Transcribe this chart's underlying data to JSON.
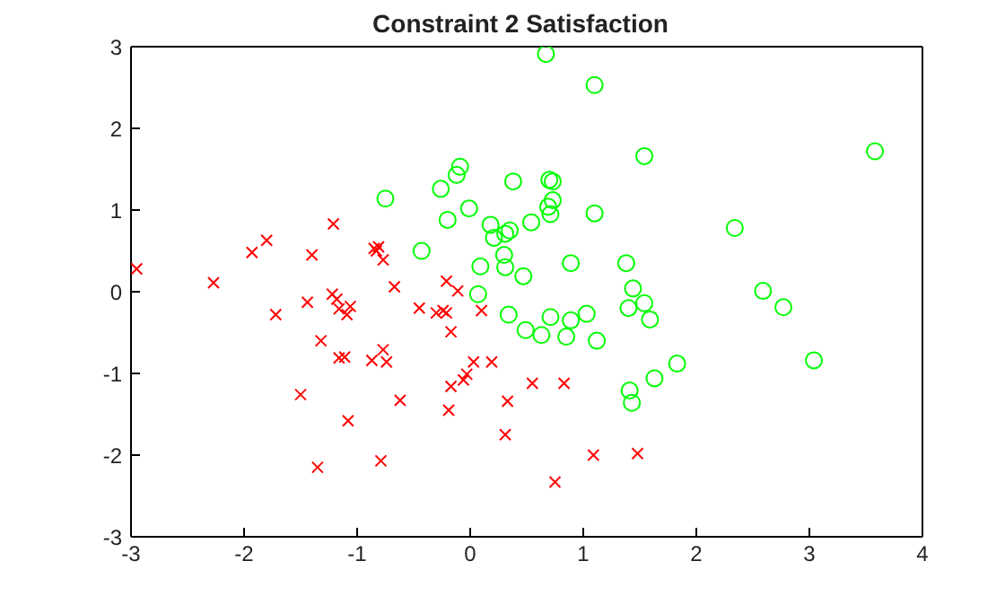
{
  "chart_data": {
    "type": "scatter",
    "title": "Constraint 2 Satisfaction",
    "xlim": [
      -3,
      4
    ],
    "ylim": [
      -3,
      3
    ],
    "xticks": [
      -3,
      -2,
      -1,
      0,
      1,
      2,
      3,
      4
    ],
    "yticks": [
      -3,
      -2,
      -1,
      0,
      1,
      2,
      3
    ],
    "grid": false,
    "legend": false,
    "series": [
      {
        "color": "#ff0000",
        "marker": "cross",
        "x": [
          -2.95,
          -2.27,
          -1.93,
          -1.8,
          -1.4,
          -1.21,
          -0.85,
          -0.81,
          -0.83,
          -0.77,
          -0.67,
          -0.21,
          -0.11,
          -1.72,
          -1.44,
          -1.22,
          -1.18,
          -1.16,
          -1.06,
          -1.09,
          -1.32,
          -1.16,
          -1.11,
          -1.5,
          -1.08,
          -1.35,
          -0.87,
          -0.77,
          -0.74,
          -0.79,
          -0.62,
          -0.45,
          -0.3,
          -0.24,
          -0.21,
          -0.17,
          -0.19,
          -0.17,
          -0.06,
          -0.03,
          0.03,
          0.1,
          0.19,
          0.33,
          0.31,
          0.55,
          0.83,
          1.09,
          1.48,
          0.75
        ],
        "values": [
          0.28,
          0.11,
          0.48,
          0.63,
          0.45,
          0.83,
          0.53,
          0.55,
          0.5,
          0.39,
          0.06,
          0.13,
          0.01,
          -0.28,
          -0.13,
          -0.03,
          -0.09,
          -0.21,
          -0.18,
          -0.28,
          -0.6,
          -0.81,
          -0.8,
          -1.26,
          -1.58,
          -2.15,
          -0.84,
          -0.71,
          -0.86,
          -2.07,
          -1.33,
          -0.2,
          -0.26,
          -0.23,
          -0.26,
          -0.49,
          -1.45,
          -1.16,
          -1.08,
          -1.01,
          -0.86,
          -0.23,
          -0.86,
          -1.34,
          -1.75,
          -1.12,
          -1.12,
          -2.0,
          -1.98,
          -2.33
        ]
      },
      {
        "color": "#00ff00",
        "marker": "circle",
        "x": [
          -0.75,
          -0.43,
          -0.26,
          -0.12,
          -0.09,
          -0.2,
          -0.01,
          0.18,
          0.21,
          0.31,
          0.35,
          0.38,
          0.3,
          0.31,
          0.09,
          0.07,
          0.47,
          0.67,
          1.1,
          1.54,
          3.58,
          0.7,
          0.73,
          0.73,
          0.69,
          0.71,
          0.54,
          1.1,
          2.34,
          0.89,
          1.38,
          1.44,
          2.59,
          2.77,
          1.4,
          1.54,
          1.59,
          0.34,
          0.49,
          0.63,
          0.71,
          0.85,
          0.89,
          1.03,
          1.12,
          1.41,
          1.43,
          1.63,
          1.83,
          3.04
        ],
        "values": [
          1.14,
          0.5,
          1.26,
          1.43,
          1.53,
          0.88,
          1.02,
          0.82,
          0.66,
          0.71,
          0.75,
          1.35,
          0.45,
          0.3,
          0.31,
          -0.03,
          0.19,
          2.91,
          2.53,
          1.66,
          1.72,
          1.37,
          1.35,
          1.12,
          1.04,
          0.95,
          0.85,
          0.96,
          0.78,
          0.35,
          0.35,
          0.04,
          0.01,
          -0.19,
          -0.2,
          -0.14,
          -0.34,
          -0.28,
          -0.47,
          -0.53,
          -0.31,
          -0.55,
          -0.35,
          -0.27,
          -0.6,
          -1.21,
          -1.36,
          -1.06,
          -0.88,
          -0.84
        ]
      }
    ]
  }
}
